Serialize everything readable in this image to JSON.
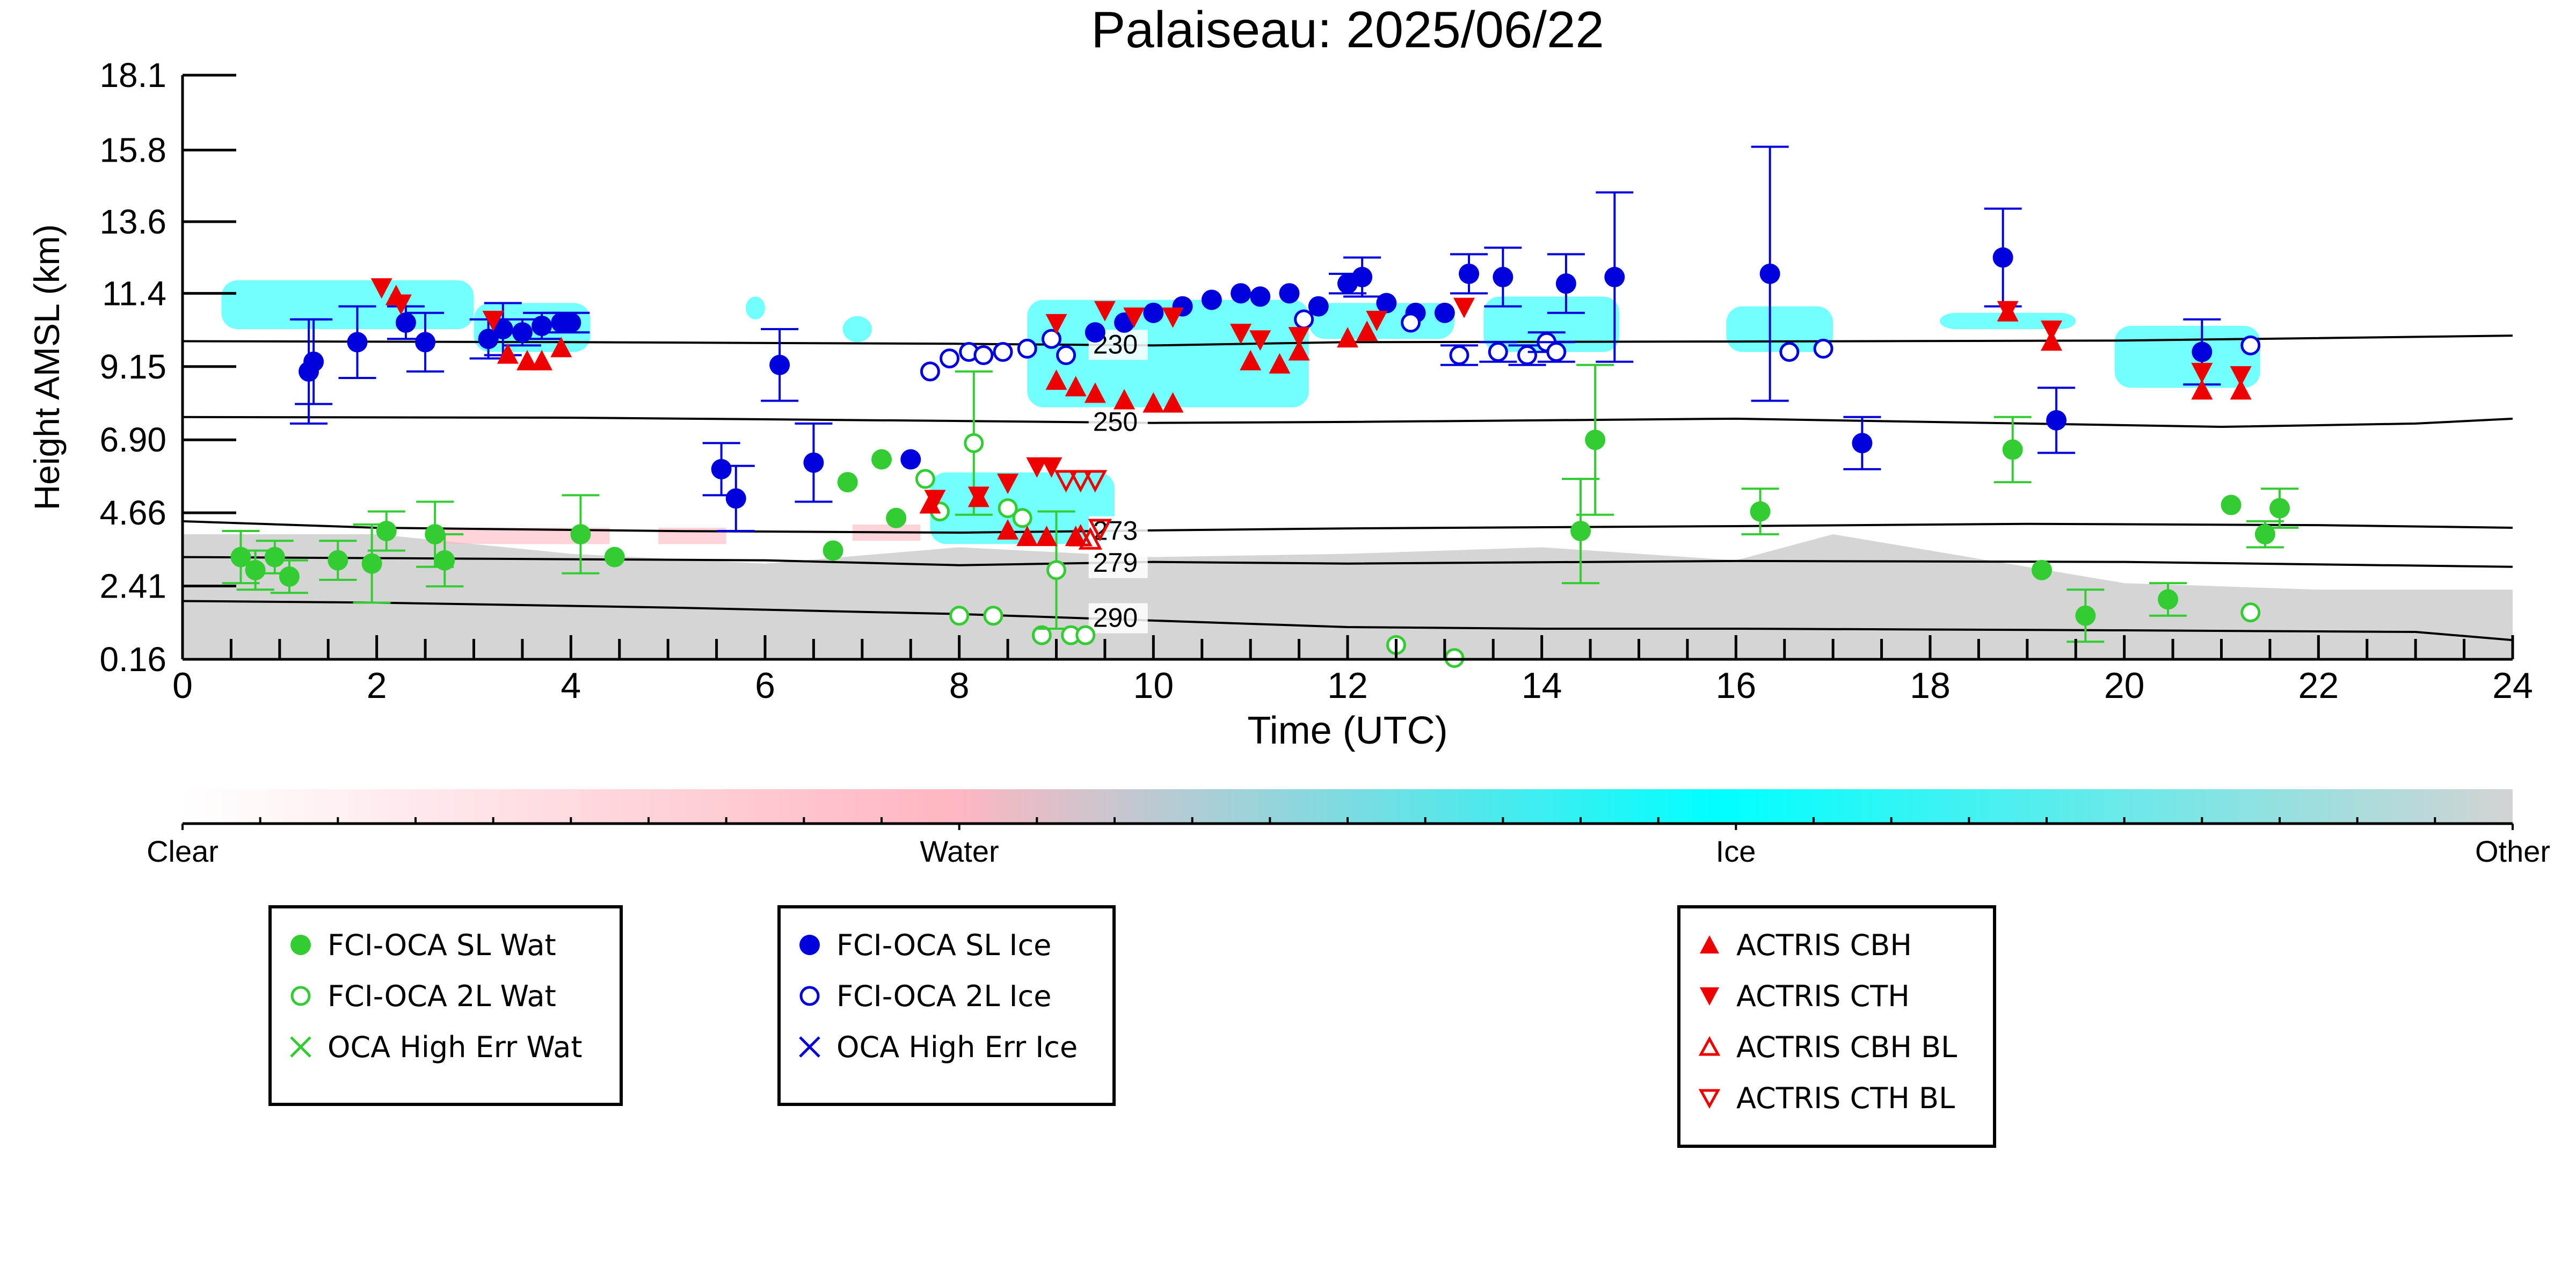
{
  "chart_data": {
    "type": "scatter",
    "title": "Palaiseau: 2025/06/22",
    "xlabel": "Time (UTC)",
    "ylabel": "Height AMSL (km)",
    "xlim": [
      0,
      24
    ],
    "ylim": [
      0.16,
      18.1
    ],
    "xticks": [
      "0",
      "2",
      "4",
      "6",
      "8",
      "10",
      "12",
      "14",
      "16",
      "18",
      "20",
      "22",
      "24"
    ],
    "yticks": [
      "0.16",
      "2.41",
      "4.66",
      "6.90",
      "9.15",
      "11.4",
      "13.6",
      "15.8",
      "18.1"
    ],
    "ytick_values": [
      0.16,
      2.41,
      4.66,
      6.9,
      9.15,
      11.4,
      13.6,
      15.8,
      18.1
    ],
    "grid": false,
    "isotherms": [
      {
        "label": "230",
        "label_x": 9.3,
        "points": [
          [
            0,
            9.93
          ],
          [
            4,
            9.9
          ],
          [
            8,
            9.85
          ],
          [
            10,
            9.8
          ],
          [
            12,
            9.9
          ],
          [
            16,
            9.92
          ],
          [
            20,
            9.95
          ],
          [
            24,
            10.1
          ]
        ]
      },
      {
        "label": "250",
        "label_x": 9.3,
        "points": [
          [
            0,
            7.6
          ],
          [
            4,
            7.58
          ],
          [
            8,
            7.48
          ],
          [
            10,
            7.42
          ],
          [
            12,
            7.45
          ],
          [
            16,
            7.55
          ],
          [
            19,
            7.4
          ],
          [
            21,
            7.3
          ],
          [
            23,
            7.4
          ],
          [
            24,
            7.55
          ]
        ]
      },
      {
        "label": "273",
        "label_x": 9.3,
        "points": [
          [
            0,
            4.4
          ],
          [
            2,
            4.2
          ],
          [
            5,
            4.1
          ],
          [
            8,
            4.05
          ],
          [
            10,
            4.12
          ],
          [
            12,
            4.18
          ],
          [
            16,
            4.25
          ],
          [
            19,
            4.32
          ],
          [
            22,
            4.28
          ],
          [
            24,
            4.2
          ]
        ]
      },
      {
        "label": "279",
        "label_x": 9.3,
        "points": [
          [
            0,
            3.3
          ],
          [
            3,
            3.25
          ],
          [
            6,
            3.2
          ],
          [
            8,
            3.05
          ],
          [
            10,
            3.15
          ],
          [
            12,
            3.1
          ],
          [
            16,
            3.18
          ],
          [
            20,
            3.15
          ],
          [
            24,
            3.0
          ]
        ]
      },
      {
        "label": "290",
        "label_x": 9.3,
        "points": [
          [
            0,
            1.95
          ],
          [
            2,
            1.9
          ],
          [
            5,
            1.75
          ],
          [
            8,
            1.55
          ],
          [
            10,
            1.35
          ],
          [
            12,
            1.15
          ],
          [
            14,
            1.1
          ],
          [
            16,
            1.1
          ],
          [
            20,
            1.05
          ],
          [
            23,
            1.0
          ],
          [
            24,
            0.75
          ]
        ]
      }
    ],
    "ice_regions": [
      {
        "x": [
          0.4,
          3.0
        ],
        "y": [
          10.3,
          11.8
        ]
      },
      {
        "x": [
          3.0,
          4.2
        ],
        "y": [
          9.6,
          11.1
        ]
      },
      {
        "x": [
          5.8,
          6.0
        ],
        "y": [
          10.6,
          11.3
        ]
      },
      {
        "x": [
          6.8,
          7.1
        ],
        "y": [
          9.9,
          10.7
        ]
      },
      {
        "x": [
          8.7,
          11.6
        ],
        "y": [
          7.9,
          11.2
        ]
      },
      {
        "x": [
          11.6,
          13.1
        ],
        "y": [
          10.0,
          11.1
        ]
      },
      {
        "x": [
          13.4,
          14.8
        ],
        "y": [
          9.6,
          11.3
        ]
      },
      {
        "x": [
          15.9,
          17.0
        ],
        "y": [
          9.6,
          11.0
        ]
      },
      {
        "x": [
          18.1,
          19.5
        ],
        "y": [
          10.3,
          10.8
        ]
      },
      {
        "x": [
          19.9,
          21.4
        ],
        "y": [
          8.5,
          10.4
        ]
      },
      {
        "x": [
          7.7,
          9.6
        ],
        "y": [
          3.7,
          5.9
        ]
      }
    ],
    "other_regions": [
      {
        "x": [
          0,
          24
        ],
        "y": [
          0.16,
          3.5
        ],
        "top": [
          [
            0,
            4.0
          ],
          [
            2,
            4.0
          ],
          [
            4,
            3.4
          ],
          [
            6,
            3.1
          ],
          [
            8,
            3.6
          ],
          [
            10,
            3.3
          ],
          [
            12,
            3.4
          ],
          [
            14,
            3.6
          ],
          [
            16,
            3.2
          ],
          [
            17,
            4.0
          ],
          [
            20,
            2.5
          ],
          [
            22,
            2.3
          ],
          [
            24,
            2.3
          ]
        ]
      }
    ],
    "series": [
      {
        "name": "FCI-OCA SL Wat",
        "marker": "filled-circle",
        "color": "#33cc33",
        "points": [
          [
            0.6,
            3.3,
            0.8
          ],
          [
            0.75,
            2.9,
            0.6
          ],
          [
            0.95,
            3.3,
            0.5
          ],
          [
            1.1,
            2.7,
            0.5
          ],
          [
            1.6,
            3.2,
            0.6
          ],
          [
            1.95,
            3.1,
            1.2
          ],
          [
            2.1,
            4.1,
            0.6
          ],
          [
            2.6,
            4.0,
            1.0
          ],
          [
            2.7,
            3.2,
            0.8
          ],
          [
            4.1,
            4.0,
            1.2
          ],
          [
            4.45,
            3.3,
            0.0
          ],
          [
            6.7,
            3.5,
            0.0
          ],
          [
            6.85,
            5.6,
            0.0
          ],
          [
            7.2,
            6.3,
            0.0
          ],
          [
            7.35,
            4.5,
            0.0
          ],
          [
            14.4,
            4.1,
            1.6
          ],
          [
            14.55,
            6.9,
            2.3
          ],
          [
            16.25,
            4.7,
            0.7
          ],
          [
            19.15,
            2.9,
            0.0
          ],
          [
            19.6,
            1.5,
            0.8
          ],
          [
            18.85,
            6.6,
            1.0
          ],
          [
            20.45,
            2.0,
            0.5
          ],
          [
            21.1,
            4.9,
            0.0
          ],
          [
            21.45,
            4.0,
            0.4
          ],
          [
            21.6,
            4.8,
            0.6
          ]
        ]
      },
      {
        "name": "FCI-OCA 2L Wat",
        "marker": "open-circle",
        "color": "#33cc33",
        "points": [
          [
            7.65,
            5.7,
            0.0
          ],
          [
            7.8,
            4.7,
            0.0
          ],
          [
            8.0,
            1.5,
            0.0
          ],
          [
            8.15,
            6.8,
            2.2
          ],
          [
            8.35,
            1.5,
            0.0
          ],
          [
            8.5,
            4.8,
            0.0
          ],
          [
            8.65,
            4.5,
            0.0
          ],
          [
            8.85,
            0.9,
            0.0
          ],
          [
            9.0,
            2.9,
            1.8
          ],
          [
            9.15,
            0.9,
            0.0
          ],
          [
            9.3,
            0.9,
            0.0
          ],
          [
            12.5,
            0.6,
            0.0
          ],
          [
            13.1,
            0.2,
            0.0
          ],
          [
            21.3,
            1.6,
            0.0
          ]
        ]
      },
      {
        "name": "OCA High Err Wat",
        "marker": "cross",
        "color": "#33cc33",
        "points": []
      },
      {
        "name": "FCI-OCA SL Ice",
        "marker": "filled-circle",
        "color": "#0000dd",
        "points": [
          [
            1.3,
            9.0,
            1.6
          ],
          [
            1.35,
            9.3,
            1.3
          ],
          [
            1.8,
            9.9,
            1.1
          ],
          [
            2.3,
            10.5,
            0.5
          ],
          [
            2.5,
            9.9,
            0.9
          ],
          [
            3.15,
            10.0,
            0.6
          ],
          [
            3.3,
            10.3,
            0.8
          ],
          [
            3.5,
            10.2,
            0.4
          ],
          [
            3.7,
            10.4,
            0.4
          ],
          [
            3.9,
            10.5,
            0.3
          ],
          [
            4.0,
            10.5,
            0.3
          ],
          [
            5.55,
            6.0,
            0.8
          ],
          [
            5.7,
            5.1,
            1.0
          ],
          [
            6.15,
            9.2,
            1.1
          ],
          [
            6.5,
            6.2,
            1.2
          ],
          [
            7.5,
            6.3,
            0.0
          ],
          [
            9.4,
            10.2,
            0.0
          ],
          [
            9.7,
            10.5,
            0.0
          ],
          [
            10.0,
            10.8,
            0.0
          ],
          [
            10.3,
            11.0,
            0.0
          ],
          [
            10.6,
            11.2,
            0.0
          ],
          [
            10.9,
            11.4,
            0.0
          ],
          [
            11.1,
            11.3,
            0.0
          ],
          [
            11.4,
            11.4,
            0.0
          ],
          [
            11.7,
            11.0,
            0.0
          ],
          [
            12.0,
            11.7,
            0.3
          ],
          [
            12.15,
            11.9,
            0.6
          ],
          [
            12.4,
            11.1,
            0.0
          ],
          [
            12.7,
            10.8,
            0.0
          ],
          [
            13.0,
            10.8,
            0.0
          ],
          [
            13.25,
            12.0,
            0.6
          ],
          [
            13.6,
            11.9,
            0.9
          ],
          [
            14.25,
            11.7,
            0.9
          ],
          [
            14.75,
            11.9,
            2.6
          ],
          [
            16.35,
            12.0,
            3.9
          ],
          [
            17.3,
            6.8,
            0.8
          ],
          [
            18.75,
            12.5,
            1.5
          ],
          [
            19.3,
            7.5,
            1.0
          ],
          [
            20.8,
            9.6,
            1.0
          ]
        ]
      },
      {
        "name": "FCI-OCA 2L Ice",
        "marker": "open-circle",
        "color": "#0000dd",
        "points": [
          [
            7.7,
            9.0,
            0.0
          ],
          [
            7.9,
            9.4,
            0.0
          ],
          [
            8.1,
            9.6,
            0.0
          ],
          [
            8.25,
            9.5,
            0.0
          ],
          [
            8.45,
            9.6,
            0.0
          ],
          [
            8.7,
            9.7,
            0.0
          ],
          [
            8.95,
            10.0,
            0.0
          ],
          [
            9.1,
            9.5,
            0.0
          ],
          [
            11.55,
            10.6,
            0.0
          ],
          [
            12.65,
            10.5,
            0.0
          ],
          [
            13.15,
            9.5,
            0.3
          ],
          [
            13.55,
            9.6,
            0.3
          ],
          [
            13.85,
            9.5,
            0.3
          ],
          [
            14.05,
            9.9,
            0.3
          ],
          [
            14.15,
            9.6,
            0.3
          ],
          [
            16.55,
            9.6,
            0.0
          ],
          [
            16.9,
            9.7,
            0.0
          ],
          [
            21.3,
            9.8,
            0.0
          ]
        ]
      },
      {
        "name": "OCA High Err Ice",
        "marker": "cross",
        "color": "#0000dd",
        "points": []
      },
      {
        "name": "ACTRIS CBH",
        "marker": "triangle-up",
        "color": "#ee0000",
        "points": [
          [
            2.2,
            11.3
          ],
          [
            3.35,
            9.5
          ],
          [
            3.55,
            9.3
          ],
          [
            3.7,
            9.3
          ],
          [
            3.9,
            9.7
          ],
          [
            9.0,
            8.7
          ],
          [
            9.2,
            8.5
          ],
          [
            9.4,
            8.3
          ],
          [
            9.7,
            8.1
          ],
          [
            10.0,
            8.0
          ],
          [
            10.2,
            8.0
          ],
          [
            11.0,
            9.3
          ],
          [
            11.3,
            9.2
          ],
          [
            11.5,
            9.6
          ],
          [
            12.0,
            10.0
          ],
          [
            12.2,
            10.2
          ],
          [
            18.8,
            10.8
          ],
          [
            19.25,
            9.9
          ],
          [
            20.8,
            8.4
          ],
          [
            21.2,
            8.4
          ],
          [
            8.5,
            4.1
          ],
          [
            8.7,
            3.9
          ],
          [
            8.9,
            3.9
          ],
          [
            9.2,
            3.9
          ],
          [
            7.7,
            4.9
          ],
          [
            8.2,
            5.1
          ]
        ]
      },
      {
        "name": "ACTRIS CTH",
        "marker": "triangle-down",
        "color": "#ee0000",
        "points": [
          [
            2.05,
            11.6
          ],
          [
            2.25,
            11.1
          ],
          [
            3.2,
            10.6
          ],
          [
            9.0,
            10.5
          ],
          [
            9.5,
            10.9
          ],
          [
            9.8,
            10.7
          ],
          [
            10.2,
            10.7
          ],
          [
            10.9,
            10.2
          ],
          [
            11.1,
            10.0
          ],
          [
            11.5,
            10.1
          ],
          [
            12.3,
            10.6
          ],
          [
            13.2,
            11.0
          ],
          [
            18.8,
            10.9
          ],
          [
            19.25,
            10.3
          ],
          [
            20.8,
            9.0
          ],
          [
            21.2,
            8.9
          ],
          [
            8.5,
            5.6
          ],
          [
            8.8,
            6.1
          ],
          [
            8.95,
            6.1
          ],
          [
            7.75,
            5.1
          ],
          [
            8.2,
            5.2
          ]
        ]
      },
      {
        "name": "ACTRIS CBH BL",
        "marker": "open-triangle-up",
        "color": "#ee0000",
        "points": [
          [
            9.25,
            3.9
          ],
          [
            9.35,
            3.8
          ]
        ]
      },
      {
        "name": "ACTRIS CTH BL",
        "marker": "open-triangle-down",
        "color": "#ee0000",
        "points": [
          [
            9.1,
            5.7
          ],
          [
            9.25,
            5.7
          ],
          [
            9.4,
            5.7
          ],
          [
            9.45,
            4.2
          ]
        ]
      }
    ],
    "colorbar": {
      "labels": [
        "Clear",
        "Water",
        "Ice",
        "Other"
      ],
      "colors": [
        "#ffffff",
        "#ffb6c1",
        "#00ffff",
        "#d3d3d3"
      ]
    },
    "legend_groups": [
      [
        "FCI-OCA SL Wat",
        "FCI-OCA 2L Wat",
        "OCA High Err Wat"
      ],
      [
        "FCI-OCA SL Ice",
        "FCI-OCA 2L Ice",
        "OCA High Err Ice"
      ],
      [
        "ACTRIS CBH",
        "ACTRIS CTH",
        "ACTRIS CBH BL",
        "ACTRIS CTH BL"
      ]
    ],
    "legend_placement": "below"
  }
}
